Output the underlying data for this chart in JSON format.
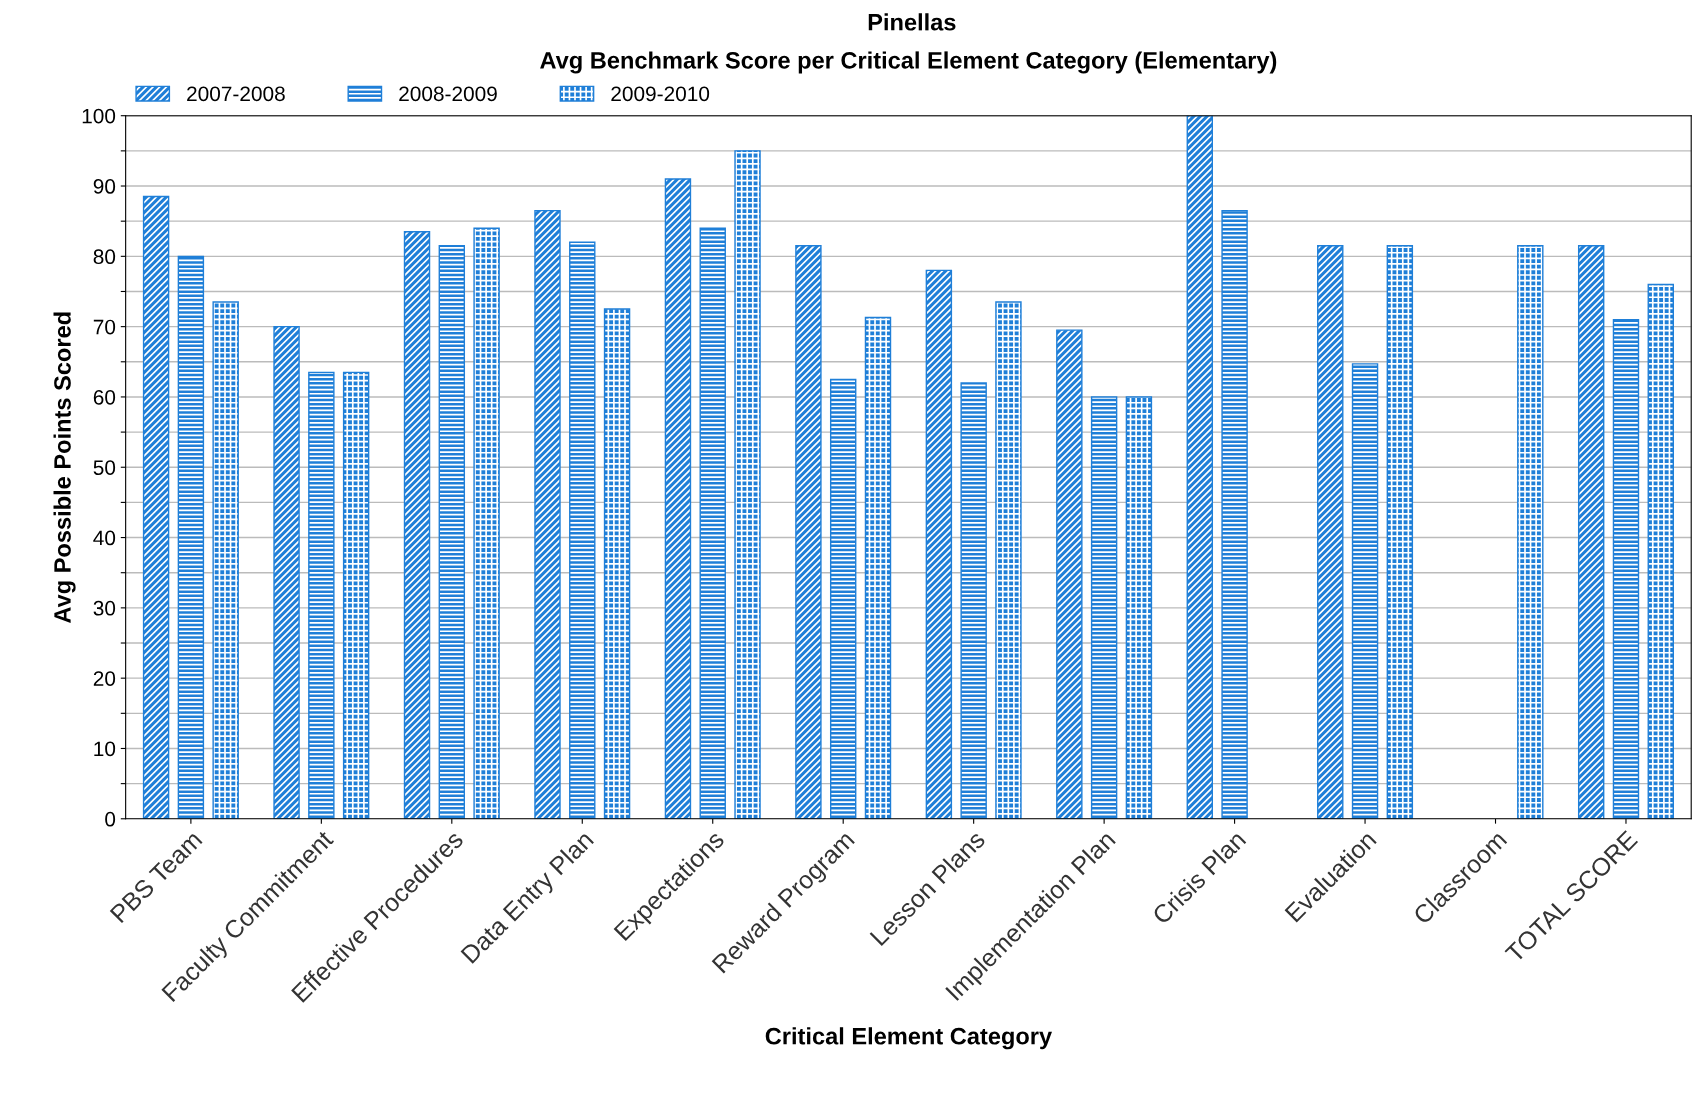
{
  "chart_data": {
    "type": "bar",
    "title": "Pinellas",
    "subtitle": "Avg Benchmark Score per Critical Element Category (Elementary)",
    "xlabel": "Critical Element Category",
    "ylabel": "Avg Possible Points Scored",
    "categories": [
      "PBS Team",
      "Faculty Commitment",
      "Effective Procedures",
      "Data Entry Plan",
      "Expectations",
      "Reward Program",
      "Lesson Plans",
      "Implementation Plan",
      "Crisis Plan",
      "Evaluation",
      "Classroom",
      "TOTAL SCORE"
    ],
    "series": [
      {
        "name": "2007-2008",
        "color": "#1f7fd8",
        "values": [
          88.5,
          70,
          83.5,
          86.5,
          91,
          81.5,
          78,
          69.5,
          100,
          81.5,
          null,
          81.5
        ]
      },
      {
        "name": "2008-2009",
        "color": "#1f7fd8",
        "values": [
          80,
          63.5,
          81.5,
          82,
          84,
          62.5,
          62,
          60,
          86.5,
          64.7,
          null,
          71
        ]
      },
      {
        "name": "2009-2010",
        "color": "#1f7fd8",
        "values": [
          73.5,
          63.5,
          84,
          72.5,
          95,
          71.3,
          73.5,
          60,
          null,
          81.5,
          81.5,
          76
        ]
      }
    ],
    "ylim": [
      0,
      100
    ],
    "yticks": [
      0,
      {
        "value": 5,
        "label": null
      },
      10,
      {
        "value": 15,
        "label": null
      },
      20,
      {
        "value": 25,
        "label": null
      },
      30,
      {
        "value": 35,
        "label": null
      },
      40,
      {
        "value": 45,
        "label": null
      },
      50,
      {
        "value": 55,
        "label": null
      },
      60,
      {
        "value": 65,
        "label": null
      },
      70,
      {
        "value": 75,
        "label": null
      },
      80,
      {
        "value": 85,
        "label": null
      },
      90,
      {
        "value": 95,
        "label": null
      },
      100
    ],
    "grid": "y",
    "legend": "top left"
  }
}
